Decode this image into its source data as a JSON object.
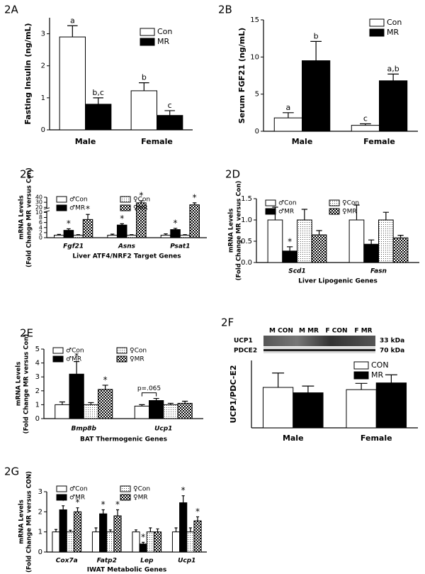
{
  "chart_data": [
    {
      "panel": "2A",
      "type": "bar",
      "ylabel": "Fasting Insulin (ng/mL)",
      "categories": [
        "Male",
        "Female"
      ],
      "series": [
        {
          "name": "Con",
          "color": "#ffffff",
          "values": [
            2.9,
            1.22
          ],
          "errors": [
            0.35,
            0.25
          ],
          "labels": [
            "a",
            "b"
          ]
        },
        {
          "name": "MR",
          "color": "#000000",
          "values": [
            0.8,
            0.45
          ],
          "errors": [
            0.2,
            0.15
          ],
          "labels": [
            "b,c",
            "c"
          ]
        }
      ],
      "ylim": [
        0,
        3.5
      ],
      "yticks": [
        0,
        1,
        2,
        3
      ],
      "legend": "upper right"
    },
    {
      "panel": "2B",
      "type": "bar",
      "ylabel": "Serum FGF21 (ng/mL)",
      "categories": [
        "Male",
        "Female"
      ],
      "series": [
        {
          "name": "Con",
          "color": "#ffffff",
          "values": [
            1.8,
            0.8
          ],
          "errors": [
            0.7,
            0.2
          ],
          "labels": [
            "a",
            "c"
          ]
        },
        {
          "name": "MR",
          "color": "#000000",
          "values": [
            9.5,
            6.8
          ],
          "errors": [
            2.6,
            0.9
          ],
          "labels": [
            "b",
            "a,b"
          ]
        }
      ],
      "ylim": [
        0,
        15
      ],
      "yticks": [
        0,
        5,
        10,
        15
      ],
      "legend": "upper right"
    },
    {
      "panel": "2C",
      "type": "bar",
      "ylabel": [
        "mRNA Levels",
        "(Fold Change MR versus Con)"
      ],
      "xlabel": "Liver ATF4/NRF2 Target Genes",
      "categories": [
        "Fgf21",
        "Asns",
        "Psat1"
      ],
      "italic_categories": true,
      "series": [
        {
          "name": "♂Con",
          "color": "#ffffff",
          "values": [
            1,
            1,
            1
          ],
          "errors": [
            0.3,
            0.4,
            0.5
          ]
        },
        {
          "name": "♂MR",
          "color": "#000000",
          "values": [
            2.9,
            5,
            3.2
          ],
          "errors": [
            0.6,
            0.5,
            0.5
          ],
          "labels": [
            "*",
            "*",
            "*"
          ]
        },
        {
          "name": "♀Con",
          "color": "#000000",
          "pattern": "dots",
          "values": [
            1,
            1,
            1
          ],
          "errors": [
            0.2,
            0.2,
            0.2
          ]
        },
        {
          "name": "♀MR",
          "color": "#000000",
          "pattern": "checker",
          "values": [
            7.2,
            29,
            25
          ],
          "errors": [
            2,
            4,
            4
          ],
          "labels": [
            "*",
            "*",
            "*"
          ]
        }
      ],
      "ylim": [
        0,
        40
      ],
      "yticks": [
        0,
        2,
        4,
        6,
        8,
        10,
        20,
        30,
        40
      ],
      "broken_axis": true,
      "legend": "top"
    },
    {
      "panel": "2D",
      "type": "bar",
      "ylabel": [
        "mRNA Levels",
        "(Fold Change MR versus Con)"
      ],
      "xlabel": "Liver Lipogenic Genes",
      "categories": [
        "Scd1",
        "Fasn"
      ],
      "italic_categories": true,
      "series": [
        {
          "name": "♂Con",
          "color": "#ffffff",
          "values": [
            1,
            1
          ],
          "errors": [
            0.3,
            0.35
          ]
        },
        {
          "name": "♂MR",
          "color": "#000000",
          "values": [
            0.27,
            0.43
          ],
          "errors": [
            0.1,
            0.1
          ],
          "labels": [
            "*",
            null
          ]
        },
        {
          "name": "♀Con",
          "color": "#000000",
          "pattern": "dots",
          "values": [
            1,
            1
          ],
          "errors": [
            0.25,
            0.18
          ]
        },
        {
          "name": "♀MR",
          "color": "#000000",
          "pattern": "checker",
          "values": [
            0.65,
            0.58
          ],
          "errors": [
            0.1,
            0.06
          ]
        }
      ],
      "ylim": [
        0,
        1.5
      ],
      "yticks": [
        {
          "value": 0,
          "label": "0.0"
        },
        {
          "value": 0.5,
          "label": "0.5"
        },
        {
          "value": 1,
          "label": "1.0"
        },
        {
          "value": 1.5,
          "label": "1.5"
        }
      ],
      "legend": "top"
    },
    {
      "panel": "2E",
      "type": "bar",
      "ylabel": [
        "mRNA Levels",
        "(Fold Change MR versus Con)"
      ],
      "xlabel": "BAT Thermogenic Genes",
      "categories": [
        "Bmp8b",
        "Ucp1"
      ],
      "italic_categories": true,
      "series": [
        {
          "name": "♂Con",
          "color": "#ffffff",
          "values": [
            1,
            0.9
          ],
          "errors": [
            0.2,
            0.1
          ]
        },
        {
          "name": "♂MR",
          "color": "#000000",
          "values": [
            3.2,
            1.3
          ],
          "errors": [
            0.9,
            0.15
          ],
          "labels": [
            "*",
            null
          ]
        },
        {
          "name": "♀Con",
          "color": "#000000",
          "pattern": "dots",
          "values": [
            1,
            1
          ],
          "errors": [
            0.15,
            0.1
          ]
        },
        {
          "name": "♀MR",
          "color": "#000000",
          "pattern": "checker",
          "values": [
            2.1,
            1.1
          ],
          "errors": [
            0.3,
            0.15
          ],
          "labels": [
            "*",
            null
          ]
        }
      ],
      "bracket": {
        "label": "p=.065",
        "category": "Ucp1"
      },
      "ylim": [
        0,
        5
      ],
      "yticks": [
        0,
        1,
        2,
        3,
        4,
        5
      ],
      "legend": "top"
    },
    {
      "panel": "2F",
      "type": "bar",
      "ylabel": "UCP1/PDC-E2",
      "categories": [
        "Male",
        "Female"
      ],
      "blot": {
        "lanes": [
          "M CON",
          "M MR",
          "F CON",
          "F MR"
        ],
        "bands": [
          {
            "name": "UCP1",
            "size": "33 kDa"
          },
          {
            "name": "PDCE2",
            "size": "70 kDa"
          }
        ]
      },
      "series": [
        {
          "name": "CON",
          "color": "#ffffff",
          "values": [
            0.9,
            0.85
          ],
          "errors": [
            0.32,
            0.14
          ]
        },
        {
          "name": "MR",
          "color": "#000000",
          "values": [
            0.78,
            1.0
          ],
          "errors": [
            0.15,
            0.18
          ]
        }
      ],
      "ylim": [
        0,
        1.5
      ],
      "yticks": [],
      "legend": "upper right"
    },
    {
      "panel": "2G",
      "type": "bar",
      "ylabel": [
        "mRNA Levels",
        "(Fold Change MR versus CON)"
      ],
      "xlabel": "IWAT Metabolic Genes",
      "categories": [
        "Cox7a",
        "Fatp2",
        "Lep",
        "Ucp1"
      ],
      "italic_categories": true,
      "series": [
        {
          "name": "♂Con",
          "color": "#ffffff",
          "values": [
            1,
            1,
            1,
            1
          ],
          "errors": [
            0.12,
            0.2,
            0.1,
            0.2
          ]
        },
        {
          "name": "♂MR",
          "color": "#000000",
          "values": [
            2.1,
            1.9,
            0.4,
            2.45
          ],
          "errors": [
            0.2,
            0.2,
            0.08,
            0.35
          ],
          "labels": [
            "*",
            "*",
            "*",
            "*"
          ]
        },
        {
          "name": "♀Con",
          "color": "#000000",
          "pattern": "dots",
          "values": [
            1,
            1,
            1,
            1
          ],
          "errors": [
            0.08,
            0.1,
            0.2,
            0.2
          ]
        },
        {
          "name": "♀MR",
          "color": "#000000",
          "pattern": "checker",
          "values": [
            2.0,
            1.8,
            1.0,
            1.55
          ],
          "errors": [
            0.2,
            0.3,
            0.15,
            0.2
          ],
          "labels": [
            "*",
            "*",
            null,
            "*"
          ]
        }
      ],
      "ylim": [
        0,
        3
      ],
      "yticks": [
        0,
        1,
        2,
        3
      ],
      "legend": "top"
    }
  ]
}
